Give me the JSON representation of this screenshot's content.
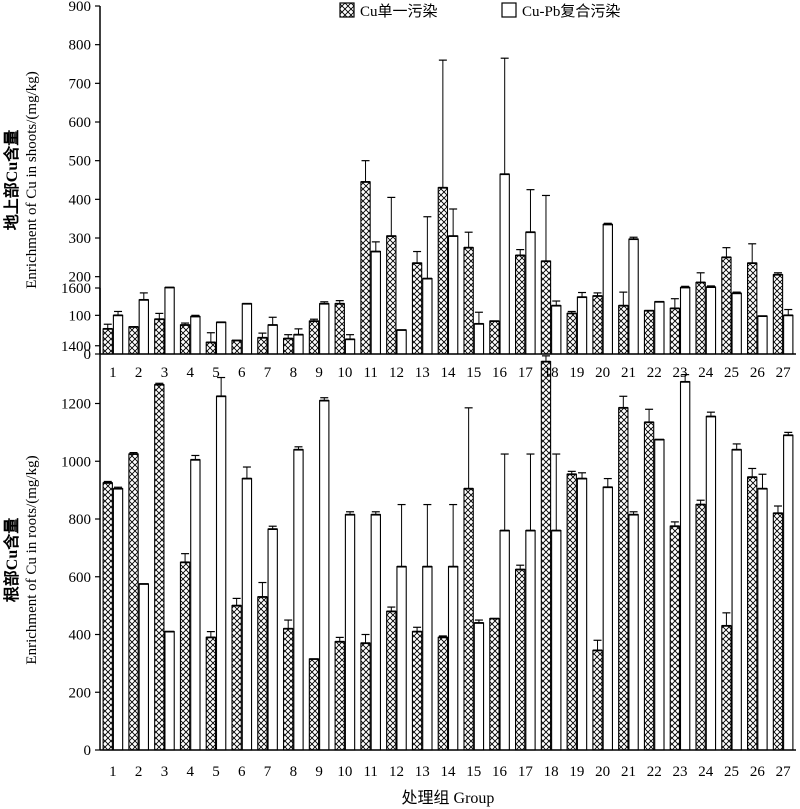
{
  "colors": {
    "axis": "#000000",
    "bar_fill": "#ffffff",
    "hatch": "#000000"
  },
  "legend": [
    {
      "label": "Cu单一污染",
      "pattern": "crosshatch"
    },
    {
      "label": "Cu-Pb复合污染",
      "pattern": "none"
    }
  ],
  "xlabel": "处理组 Group",
  "chart_data": [
    {
      "type": "bar",
      "panel": "top",
      "ylabel_cn": "地上部Cu含量",
      "ylabel_en": "Enrichment of Cu in shoots/(mg/kg)",
      "ylim": [
        0,
        900
      ],
      "yticks": [
        0,
        100,
        200,
        300,
        400,
        500,
        600,
        700,
        800,
        900
      ],
      "categories": [
        "1",
        "2",
        "3",
        "4",
        "5",
        "6",
        "7",
        "8",
        "9",
        "10",
        "11",
        "12",
        "13",
        "14",
        "15",
        "16",
        "17",
        "18",
        "19",
        "20",
        "21",
        "22",
        "23",
        "24",
        "25",
        "26",
        "27"
      ],
      "series": [
        {
          "name": "Cu单一污染",
          "values": [
            65,
            70,
            90,
            75,
            30,
            35,
            42,
            40,
            85,
            130,
            445,
            305,
            235,
            430,
            275,
            85,
            255,
            240,
            105,
            150,
            125,
            112,
            118,
            185,
            250,
            235,
            205
          ],
          "errors": [
            12,
            0,
            15,
            5,
            25,
            0,
            12,
            10,
            5,
            8,
            55,
            100,
            30,
            330,
            40,
            0,
            15,
            170,
            5,
            8,
            35,
            0,
            25,
            25,
            25,
            50,
            5
          ]
        },
        {
          "name": "Cu-Pb复合污染",
          "values": [
            100,
            140,
            172,
            97,
            82,
            130,
            75,
            50,
            130,
            38,
            265,
            62,
            195,
            305,
            78,
            465,
            315,
            125,
            147,
            335,
            297,
            135,
            172,
            173,
            157,
            98,
            100
          ],
          "errors": [
            10,
            18,
            0,
            3,
            0,
            0,
            20,
            15,
            5,
            12,
            25,
            0,
            160,
            70,
            30,
            300,
            110,
            12,
            12,
            3,
            5,
            0,
            3,
            3,
            3,
            0,
            15
          ]
        }
      ]
    },
    {
      "type": "bar",
      "panel": "bottom",
      "ylabel_cn": "根部Cu含量",
      "ylabel_en": "Enrichment of Cu in roots/(mg/kg)",
      "ylim": [
        0,
        1600
      ],
      "yticks": [
        0,
        200,
        400,
        600,
        800,
        1000,
        1200,
        1400,
        1600
      ],
      "categories": [
        "1",
        "2",
        "3",
        "4",
        "5",
        "6",
        "7",
        "8",
        "9",
        "10",
        "11",
        "12",
        "13",
        "14",
        "15",
        "16",
        "17",
        "18",
        "19",
        "20",
        "21",
        "22",
        "23",
        "24",
        "25",
        "26",
        "27"
      ],
      "series": [
        {
          "name": "Cu单一污染",
          "values": [
            925,
            1025,
            1265,
            650,
            390,
            500,
            530,
            420,
            315,
            375,
            370,
            480,
            410,
            390,
            905,
            455,
            625,
            1345,
            955,
            345,
            1185,
            1135,
            775,
            850,
            430,
            945,
            820
          ],
          "errors": [
            5,
            5,
            5,
            30,
            20,
            25,
            50,
            30,
            0,
            15,
            30,
            15,
            15,
            5,
            280,
            0,
            15,
            20,
            10,
            35,
            40,
            45,
            15,
            15,
            45,
            30,
            25
          ]
        },
        {
          "name": "Cu-Pb复合污染",
          "values": [
            905,
            575,
            410,
            1005,
            1225,
            940,
            765,
            1040,
            1210,
            815,
            815,
            635,
            635,
            635,
            440,
            760,
            760,
            760,
            940,
            910,
            815,
            1075,
            1275,
            1155,
            1040,
            905,
            1090
          ],
          "errors": [
            5,
            0,
            0,
            15,
            65,
            40,
            10,
            10,
            10,
            10,
            10,
            215,
            215,
            215,
            10,
            265,
            265,
            265,
            20,
            30,
            10,
            0,
            25,
            15,
            20,
            50,
            10
          ]
        }
      ]
    }
  ]
}
